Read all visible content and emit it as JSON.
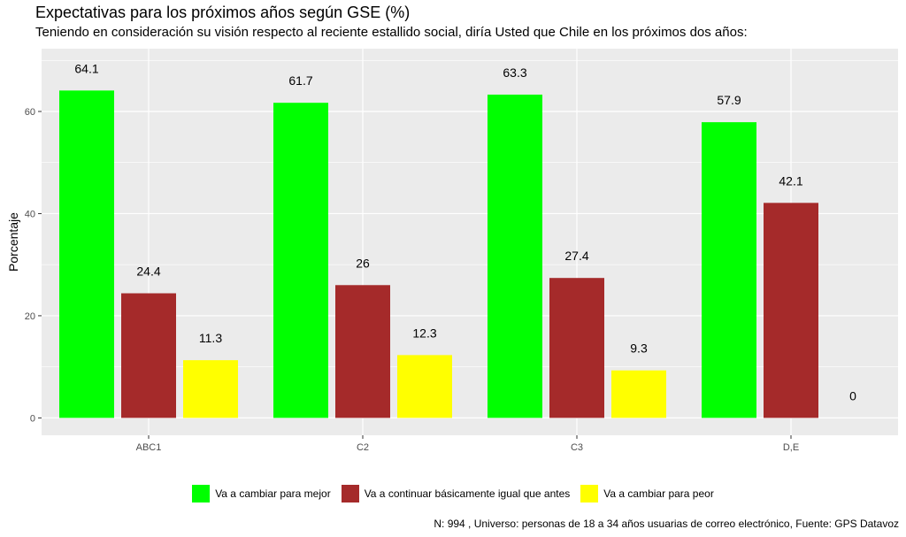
{
  "chart_data": {
    "type": "bar",
    "title": "Expectativas para los próximos años según GSE (%)",
    "subtitle": "Teniendo en consideración su visión respecto al reciente estallido social, diría Usted que Chile en los próximos dos años:",
    "caption": "N: 994 , Universo: personas de 18 a 34 años usuarias de correo electrónico, Fuente: GPS Datavoz",
    "xlabel": "",
    "ylabel": "Porcentaje",
    "categories": [
      "ABC1",
      "C2",
      "C3",
      "D,E"
    ],
    "series": [
      {
        "name": "Va a cambiar para mejor",
        "color": "#00ff00",
        "values": [
          64.1,
          61.7,
          63.3,
          57.9
        ],
        "labels": [
          "64.1",
          "61.7",
          "63.3",
          "57.9"
        ]
      },
      {
        "name": "Va a continuar básicamente igual que antes",
        "color": "#a52a2a",
        "values": [
          24.4,
          26,
          27.4,
          42.1
        ],
        "labels": [
          "24.4",
          "26",
          "27.4",
          "42.1"
        ]
      },
      {
        "name": "Va a cambiar para peor",
        "color": "#ffff00",
        "values": [
          11.3,
          12.3,
          9.3,
          0
        ],
        "labels": [
          "11.3",
          "12.3",
          "9.3",
          "0"
        ]
      }
    ],
    "yticks": [
      0,
      20,
      40,
      60
    ],
    "ylim": [
      -3.4,
      72.3
    ],
    "grid": true,
    "legend_position": "bottom",
    "panel_background": "#ebebeb"
  }
}
